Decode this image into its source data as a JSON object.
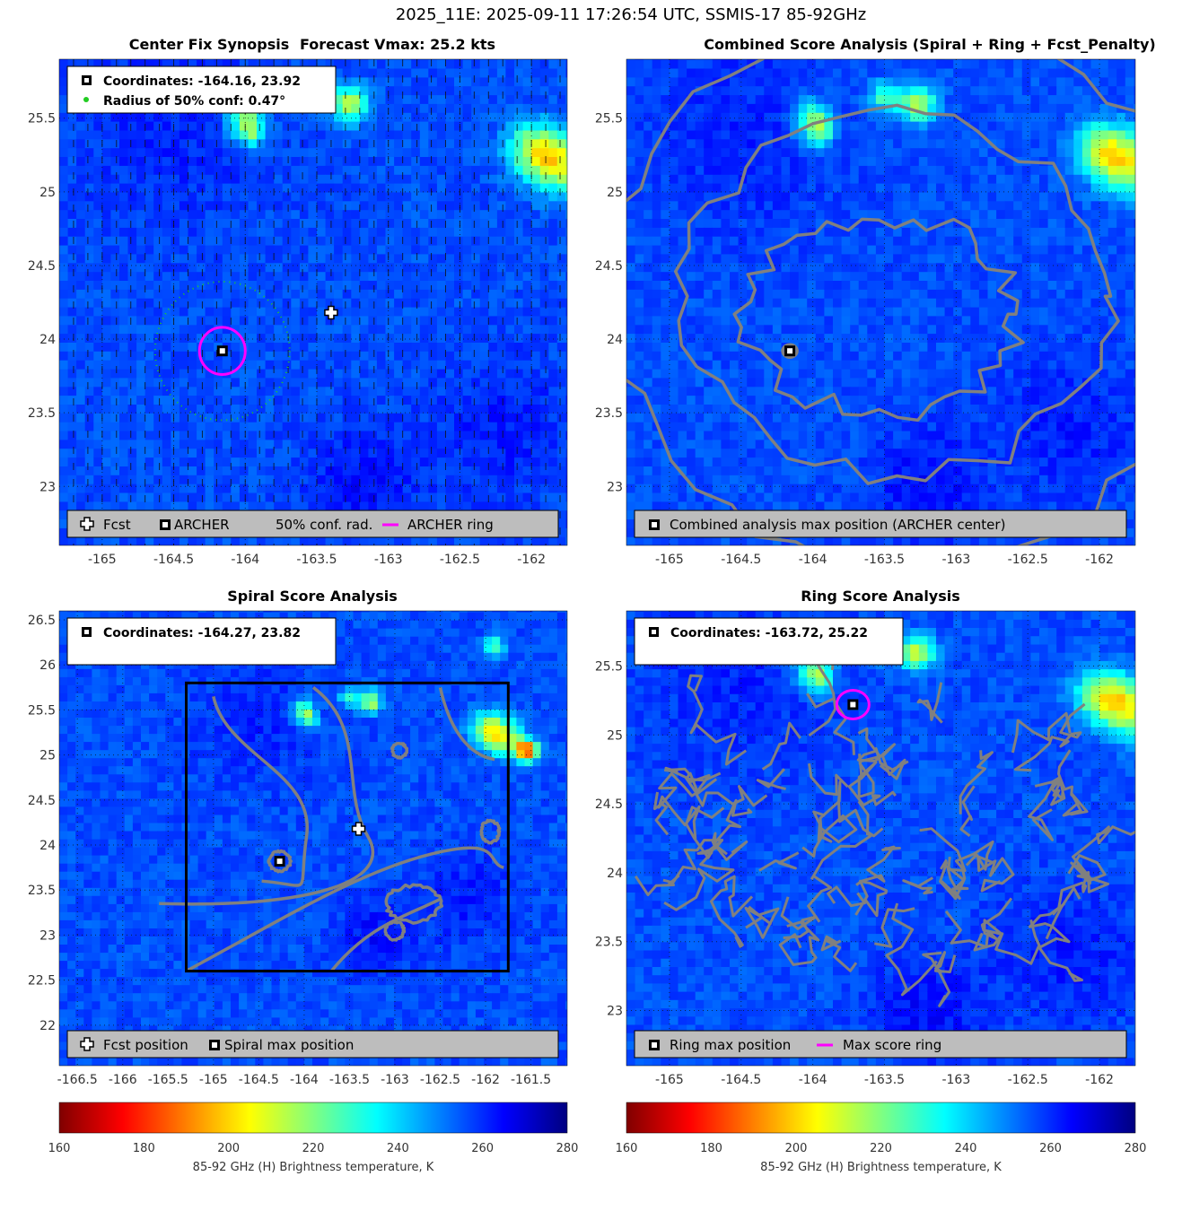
{
  "figure_title": "2025_11E: 2025-09-11 17:26:54 UTC, SSMIS-17 85-92GHz",
  "colorbar": {
    "label": "85-92 GHz (H) Brightness temperature, K",
    "range": [
      160,
      280
    ],
    "ticks": [
      "160",
      "180",
      "200",
      "220",
      "240",
      "260",
      "280"
    ],
    "colormap": [
      "#800000",
      "#ff0000",
      "#ff8000",
      "#ffff00",
      "#80ff80",
      "#00ffff",
      "#0080ff",
      "#0000ff",
      "#000080"
    ]
  },
  "chart_data": [
    {
      "type": "heatmap",
      "title": "Center Fix Synopsis",
      "subtitle": "Forecast Vmax: 25.2 kts",
      "xlim": [
        -165.3,
        -161.75
      ],
      "ylim": [
        22.6,
        25.9
      ],
      "xticks": [
        "-165",
        "-164.5",
        "-164",
        "-163.5",
        "-163",
        "-162.5",
        "-162"
      ],
      "yticks": [
        "23",
        "23.5",
        "24",
        "24.5",
        "25",
        "25.5"
      ],
      "info_lines": [
        "Coordinates: -164.16, 23.92",
        "Radius of 50% conf: 0.47°"
      ],
      "forecast_position": [
        -163.4,
        24.18
      ],
      "archer_center": [
        -164.16,
        23.92
      ],
      "confidence_radius_deg": 0.47,
      "archer_ring_radius_deg": 0.16,
      "legend": [
        "Fcst",
        "ARCHER",
        "50% conf. rad.",
        "ARCHER ring"
      ]
    },
    {
      "type": "heatmap",
      "title": "Combined Score Analysis (Spiral + Ring + Fcst_Penalty)",
      "xlim": [
        -165.3,
        -161.75
      ],
      "ylim": [
        22.6,
        25.9
      ],
      "xticks": [
        "-165",
        "-164.5",
        "-164",
        "-163.5",
        "-163",
        "-162.5",
        "-162"
      ],
      "yticks": [
        "23",
        "23.5",
        "24",
        "24.5",
        "25",
        "25.5"
      ],
      "max_position": [
        -164.16,
        23.92
      ],
      "legend": [
        "Combined analysis max position (ARCHER center)"
      ]
    },
    {
      "type": "heatmap",
      "title": "Spiral Score Analysis",
      "xlim": [
        -166.7,
        -161.1
      ],
      "ylim": [
        21.55,
        26.6
      ],
      "xticks": [
        "-166.5",
        "-166",
        "-165.5",
        "-165",
        "-164.5",
        "-164",
        "-163.5",
        "-163",
        "-162.5",
        "-162",
        "-161.5"
      ],
      "yticks": [
        "22",
        "22.5",
        "23",
        "23.5",
        "24",
        "24.5",
        "25",
        "25.5",
        "26",
        "26.5"
      ],
      "info_lines": [
        "Coordinates: -164.27, 23.82"
      ],
      "forecast_position": [
        -163.4,
        24.18
      ],
      "spiral_max": [
        -164.27,
        23.82
      ],
      "search_box": {
        "lon": [
          -165.3,
          -161.75
        ],
        "lat": [
          22.6,
          25.8
        ]
      },
      "legend": [
        "Fcst position",
        "Spiral max position"
      ]
    },
    {
      "type": "heatmap",
      "title": "Ring Score Analysis",
      "xlim": [
        -165.3,
        -161.75
      ],
      "ylim": [
        22.6,
        25.9
      ],
      "xticks": [
        "-165",
        "-164.5",
        "-164",
        "-163.5",
        "-163",
        "-162.5",
        "-162"
      ],
      "yticks": [
        "23",
        "23.5",
        "24",
        "24.5",
        "25",
        "25.5"
      ],
      "info_lines": [
        "Coordinates: -163.72, 25.22"
      ],
      "ring_max": [
        -163.72,
        25.22
      ],
      "legend": [
        "Ring max position",
        "Max score ring"
      ]
    }
  ]
}
